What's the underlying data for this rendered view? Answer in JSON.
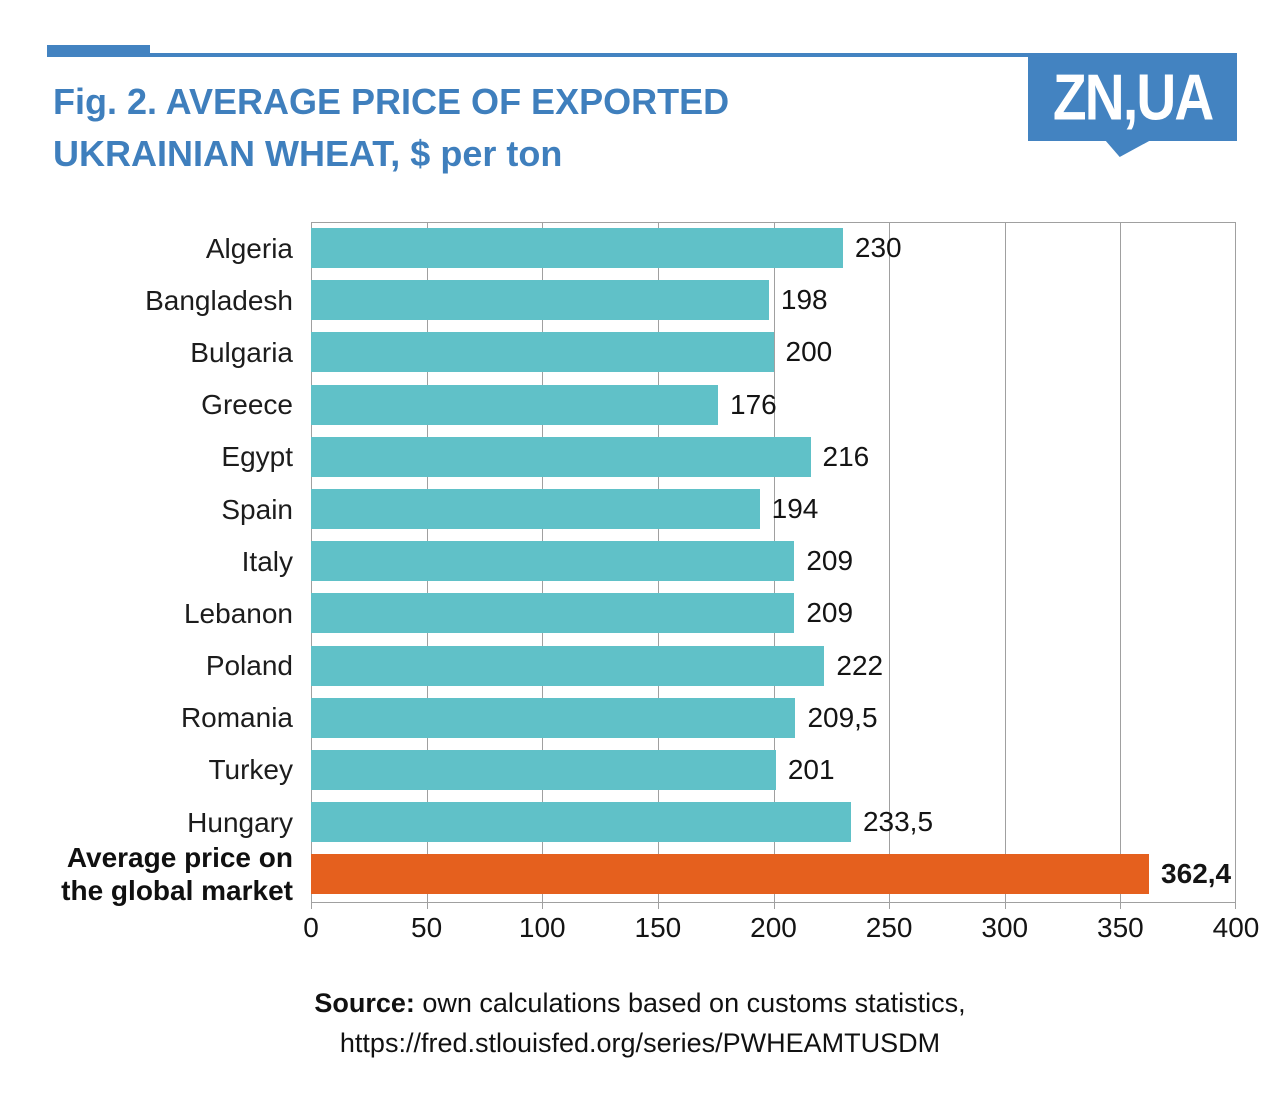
{
  "header": {
    "title_line1": "Fig. 2. AVERAGE PRICE OF EXPORTED",
    "title_line2": "UKRAINIAN WHEAT, $ per ton",
    "logo_text": "ZN,UA"
  },
  "chart_data": {
    "type": "bar",
    "orientation": "horizontal",
    "title": "Fig. 2. AVERAGE PRICE OF EXPORTED UKRAINIAN WHEAT, $ per ton",
    "unit": "$ per ton",
    "categories": [
      "Algeria",
      "Bangladesh",
      "Bulgaria",
      "Greece",
      "Egypt",
      "Spain",
      "Italy",
      "Lebanon",
      "Poland",
      "Romania",
      "Turkey",
      "Hungary",
      "Average price on\nthe global market"
    ],
    "values": [
      230,
      198,
      200,
      176,
      216,
      194,
      209,
      209,
      222,
      209.5,
      201,
      233.5,
      362.4
    ],
    "display_values": [
      "230",
      "198",
      "200",
      "176",
      "216",
      "194",
      "209",
      "209",
      "222",
      "209,5",
      "201",
      "233,5",
      "362,4"
    ],
    "highlight_index": 12,
    "x_ticks": [
      "0",
      "50",
      "100",
      "150",
      "200",
      "250",
      "300",
      "350",
      "400"
    ],
    "xlim": [
      0,
      400
    ],
    "grid": true,
    "legend": false
  },
  "footer": {
    "source_label": "Source:",
    "source_text": " own calculations based on customs statistics,",
    "source_url": "https://fred.stlouisfed.org/series/PWHEAMTUSDM"
  },
  "colors": {
    "accent_blue": "#4383c1",
    "title_blue": "#3f7fbd",
    "teal_bar": "#60c1c8",
    "orange_bar": "#e5601e",
    "gridline": "#a0a0a0"
  }
}
